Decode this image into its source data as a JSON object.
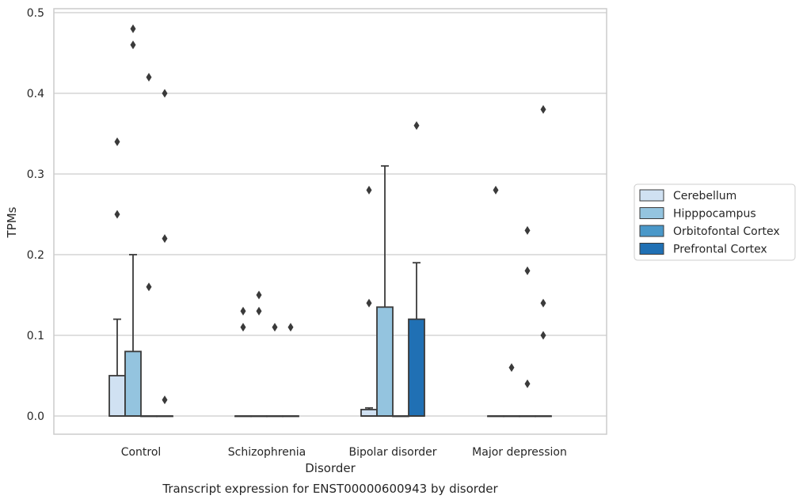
{
  "chart_data": {
    "type": "box",
    "title": "Transcript expression for ENST00000600943 by disorder",
    "xlabel": "Disorder",
    "ylabel": "TPMs",
    "ylim": [
      -0.023,
      0.505
    ],
    "yticks": [
      0.0,
      0.1,
      0.2,
      0.3,
      0.4,
      0.5
    ],
    "ytick_labels": [
      "0.0",
      "0.1",
      "0.2",
      "0.3",
      "0.4",
      "0.5"
    ],
    "grid": "y",
    "legend_position": "right",
    "categories": [
      "Control",
      "Schizophrenia",
      "Bipolar disorder",
      "Major depression"
    ],
    "series": [
      {
        "name": "Cerebellum",
        "color": "#d0e1f2",
        "boxes": [
          {
            "q1": 0.0,
            "median": 0.0,
            "q3": 0.05,
            "whisker_low": 0.0,
            "whisker_high": 0.12,
            "outliers": [
              0.25,
              0.34
            ]
          },
          {
            "q1": 0.0,
            "median": 0.0,
            "q3": 0.0,
            "whisker_low": 0.0,
            "whisker_high": 0.0,
            "outliers": [
              0.11,
              0.13
            ]
          },
          {
            "q1": 0.0,
            "median": 0.0,
            "q3": 0.008,
            "whisker_low": 0.0,
            "whisker_high": 0.01,
            "outliers": [
              0.14,
              0.28
            ]
          },
          {
            "q1": 0.0,
            "median": 0.0,
            "q3": 0.0,
            "whisker_low": 0.0,
            "whisker_high": 0.0,
            "outliers": [
              0.28
            ]
          }
        ]
      },
      {
        "name": "Hipppocampus",
        "color": "#94c4df",
        "boxes": [
          {
            "q1": 0.0,
            "median": 0.0,
            "q3": 0.08,
            "whisker_low": 0.0,
            "whisker_high": 0.2,
            "outliers": [
              0.46,
              0.48
            ]
          },
          {
            "q1": 0.0,
            "median": 0.0,
            "q3": 0.0,
            "whisker_low": 0.0,
            "whisker_high": 0.0,
            "outliers": [
              0.13,
              0.15
            ]
          },
          {
            "q1": 0.0,
            "median": 0.0,
            "q3": 0.135,
            "whisker_low": 0.0,
            "whisker_high": 0.31,
            "outliers": []
          },
          {
            "q1": 0.0,
            "median": 0.0,
            "q3": 0.0,
            "whisker_low": 0.0,
            "whisker_high": 0.0,
            "outliers": [
              0.06
            ]
          }
        ]
      },
      {
        "name": "Orbitofontal Cortex",
        "color": "#4a98c9",
        "boxes": [
          {
            "q1": 0.0,
            "median": 0.0,
            "q3": 0.0,
            "whisker_low": 0.0,
            "whisker_high": 0.0,
            "outliers": [
              0.16,
              0.42
            ]
          },
          {
            "q1": 0.0,
            "median": 0.0,
            "q3": 0.0,
            "whisker_low": 0.0,
            "whisker_high": 0.0,
            "outliers": [
              0.11
            ]
          },
          {
            "q1": 0.0,
            "median": 0.0,
            "q3": 0.0,
            "whisker_low": 0.0,
            "whisker_high": 0.0,
            "outliers": []
          },
          {
            "q1": 0.0,
            "median": 0.0,
            "q3": 0.0,
            "whisker_low": 0.0,
            "whisker_high": 0.0,
            "outliers": [
              0.04,
              0.18,
              0.23
            ]
          }
        ]
      },
      {
        "name": "Prefrontal Cortex",
        "color": "#2070b4",
        "boxes": [
          {
            "q1": 0.0,
            "median": 0.0,
            "q3": 0.0,
            "whisker_low": 0.0,
            "whisker_high": 0.0,
            "outliers": [
              0.02,
              0.22,
              0.4
            ]
          },
          {
            "q1": 0.0,
            "median": 0.0,
            "q3": 0.0,
            "whisker_low": 0.0,
            "whisker_high": 0.0,
            "outliers": [
              0.11
            ]
          },
          {
            "q1": 0.0,
            "median": 0.0,
            "q3": 0.12,
            "whisker_low": 0.0,
            "whisker_high": 0.19,
            "outliers": [
              0.36
            ]
          },
          {
            "q1": 0.0,
            "median": 0.0,
            "q3": 0.0,
            "whisker_low": 0.0,
            "whisker_high": 0.0,
            "outliers": [
              0.1,
              0.14,
              0.38
            ]
          }
        ]
      }
    ]
  }
}
